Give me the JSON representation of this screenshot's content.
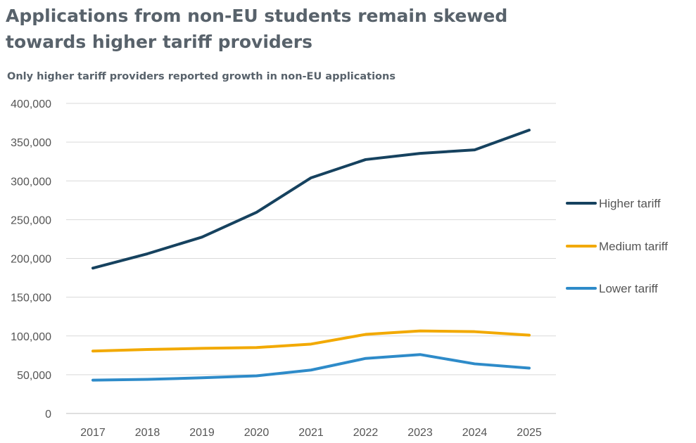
{
  "title": "Applications from non-EU students remain skewed towards higher tariff providers",
  "subtitle": "Only higher tariff providers reported growth in non-EU applications",
  "chart_data": {
    "type": "line",
    "title": "Applications from non-EU students remain skewed towards higher tariff providers",
    "subtitle": "Only higher tariff providers reported growth in non-EU applications",
    "x": [
      "2017",
      "2018",
      "2019",
      "2020",
      "2021",
      "2022",
      "2023",
      "2024",
      "2025"
    ],
    "ylim": [
      0,
      400000
    ],
    "yticks": [
      0,
      50000,
      100000,
      150000,
      200000,
      250000,
      300000,
      350000,
      400000
    ],
    "ytick_labels": [
      "0",
      "50,000",
      "100,000",
      "150,000",
      "200,000",
      "250,000",
      "300,000",
      "350,000",
      "400,000"
    ],
    "grid": true,
    "legend_position": "right",
    "series": [
      {
        "name": "Higher tariff",
        "color": "#16425f",
        "values": [
          187500,
          206000,
          227500,
          259500,
          304000,
          327500,
          335500,
          340000,
          365500
        ]
      },
      {
        "name": "Medium tariff",
        "color": "#f2a900",
        "values": [
          80500,
          82500,
          84000,
          85000,
          89500,
          102000,
          106500,
          105500,
          101000
        ]
      },
      {
        "name": "Lower tariff",
        "color": "#2e8bc9",
        "values": [
          43000,
          44000,
          46000,
          48500,
          56000,
          71000,
          76000,
          64000,
          58500
        ]
      }
    ]
  }
}
